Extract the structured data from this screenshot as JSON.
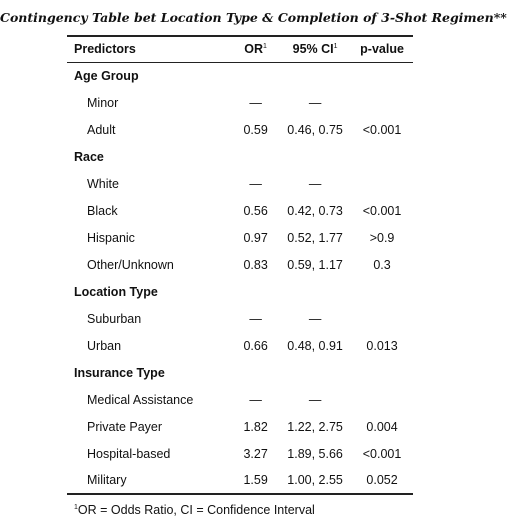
{
  "title": "Contingency Table bet Location Type & Completion of 3-Shot Regimen**",
  "columns": {
    "predictors": "Predictors",
    "or": "OR",
    "or_mark": "1",
    "ci": "95% CI",
    "ci_mark": "1",
    "p": "p-value"
  },
  "rows": [
    {
      "type": "group",
      "label": "Age Group"
    },
    {
      "type": "item",
      "label": "Minor",
      "or": "—",
      "ci": "—",
      "p": ""
    },
    {
      "type": "item",
      "label": "Adult",
      "or": "0.59",
      "ci": "0.46, 0.75",
      "p": "<0.001"
    },
    {
      "type": "group",
      "label": "Race"
    },
    {
      "type": "item",
      "label": "White",
      "or": "—",
      "ci": "—",
      "p": ""
    },
    {
      "type": "item",
      "label": "Black",
      "or": "0.56",
      "ci": "0.42, 0.73",
      "p": "<0.001"
    },
    {
      "type": "item",
      "label": "Hispanic",
      "or": "0.97",
      "ci": "0.52, 1.77",
      "p": ">0.9"
    },
    {
      "type": "item",
      "label": "Other/Unknown",
      "or": "0.83",
      "ci": "0.59, 1.17",
      "p": "0.3"
    },
    {
      "type": "group",
      "label": "Location Type"
    },
    {
      "type": "item",
      "label": "Suburban",
      "or": "—",
      "ci": "—",
      "p": ""
    },
    {
      "type": "item",
      "label": "Urban",
      "or": "0.66",
      "ci": "0.48, 0.91",
      "p": "0.013"
    },
    {
      "type": "group",
      "label": "Insurance Type"
    },
    {
      "type": "item",
      "label": "Medical Assistance",
      "or": "—",
      "ci": "—",
      "p": ""
    },
    {
      "type": "item",
      "label": "Private Payer",
      "or": "1.82",
      "ci": "1.22, 2.75",
      "p": "0.004"
    },
    {
      "type": "item",
      "label": "Hospital-based",
      "or": "3.27",
      "ci": "1.89, 5.66",
      "p": "<0.001"
    },
    {
      "type": "item",
      "label": "Military",
      "or": "1.59",
      "ci": "1.00, 2.55",
      "p": "0.052"
    }
  ],
  "footnote": {
    "mark": "1",
    "text": "OR = Odds Ratio, CI = Confidence Interval"
  }
}
